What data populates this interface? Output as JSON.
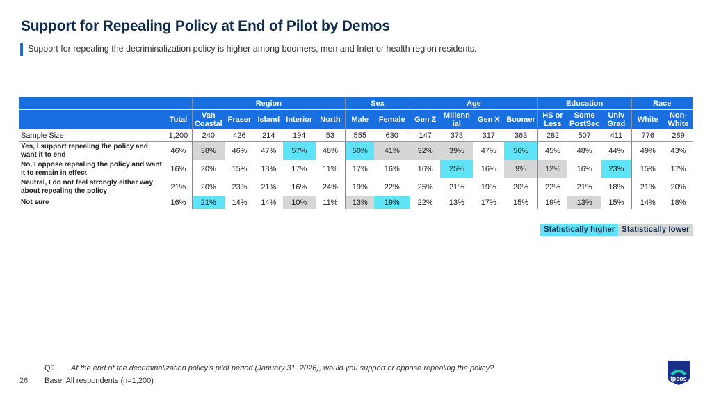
{
  "title": "Support for Repealing Policy at End of Pilot by Demos",
  "subtitle": "Support for repealing the decriminalization policy is higher among boomers, men and Interior health region residents.",
  "groups": {
    "region": "Region",
    "sex": "Sex",
    "age": "Age",
    "education": "Education",
    "race": "Race"
  },
  "columns": {
    "total": "Total",
    "van_coastal": "Van Coastal",
    "fraser": "Fraser",
    "island": "Island",
    "interior": "Interior",
    "north": "North",
    "male": "Male",
    "female": "Female",
    "genz": "Gen Z",
    "millennial": "Millenn ial",
    "genx": "Gen X",
    "boomer": "Boomer",
    "hs": "HS or Less",
    "postsec": "Some PostSec",
    "univ": "Univ Grad",
    "white": "White",
    "nonwhite": "Non-White"
  },
  "sample": {
    "label": "Sample Size",
    "values": [
      "1,200",
      "240",
      "426",
      "214",
      "194",
      "53",
      "555",
      "630",
      "147",
      "373",
      "317",
      "363",
      "282",
      "507",
      "411",
      "776",
      "289"
    ]
  },
  "rows": [
    {
      "label": "Yes, I support repealing the policy and want it to end",
      "values": [
        "46%",
        "38%",
        "46%",
        "47%",
        "57%",
        "48%",
        "50%",
        "41%",
        "32%",
        "39%",
        "47%",
        "56%",
        "45%",
        "48%",
        "44%",
        "49%",
        "43%"
      ],
      "sig": [
        "",
        "lo",
        "",
        "",
        "hi",
        "",
        "hi",
        "lo",
        "lo",
        "lo",
        "",
        "hi",
        "",
        "",
        "",
        "",
        ""
      ]
    },
    {
      "label": "No, I oppose repealing the policy and want it to remain in effect",
      "values": [
        "16%",
        "20%",
        "15%",
        "18%",
        "17%",
        "11%",
        "17%",
        "16%",
        "16%",
        "25%",
        "16%",
        "9%",
        "12%",
        "16%",
        "23%",
        "15%",
        "17%"
      ],
      "sig": [
        "",
        "",
        "",
        "",
        "",
        "",
        "",
        "",
        "",
        "hi",
        "",
        "lo",
        "lo",
        "",
        "hi",
        "",
        ""
      ]
    },
    {
      "label": "Neutral, I do not feel strongly either way about repealing the policy",
      "values": [
        "21%",
        "20%",
        "23%",
        "21%",
        "16%",
        "24%",
        "19%",
        "22%",
        "25%",
        "21%",
        "19%",
        "20%",
        "22%",
        "21%",
        "18%",
        "21%",
        "20%"
      ],
      "sig": [
        "",
        "",
        "",
        "",
        "",
        "",
        "",
        "",
        "",
        "",
        "",
        "",
        "",
        "",
        "",
        "",
        ""
      ]
    },
    {
      "label": "Not sure",
      "values": [
        "16%",
        "21%",
        "14%",
        "14%",
        "10%",
        "11%",
        "13%",
        "19%",
        "22%",
        "13%",
        "17%",
        "15%",
        "19%",
        "13%",
        "15%",
        "14%",
        "18%"
      ],
      "sig": [
        "",
        "hi",
        "",
        "",
        "lo",
        "",
        "lo",
        "hi",
        "",
        "",
        "",
        "",
        "",
        "lo",
        "",
        "",
        ""
      ]
    }
  ],
  "legend": {
    "higher": "Statistically higher",
    "lower": "Statistically lower"
  },
  "footer": {
    "q_num": "Q9.",
    "q_text": "At the end of the decriminalization policy’s pilot period (January 31, 2026), would you support or oppose repealing the policy?",
    "base": "Base: All respondents (n=1,200)",
    "page": "26"
  },
  "logo_text": "Ipsos",
  "colors": {
    "header": "#1a6fe0",
    "higher": "#5ee3f7",
    "lower": "#d6d6d6",
    "title": "#0f2a4a"
  },
  "chart_data": {
    "type": "table",
    "title": "Support for Repealing Policy at End of Pilot by Demos",
    "categories": [
      "Total",
      "Van Coastal",
      "Fraser",
      "Island",
      "Interior",
      "North",
      "Male",
      "Female",
      "Gen Z",
      "Millennial",
      "Gen X",
      "Boomer",
      "HS or Less",
      "Some PostSec",
      "Univ Grad",
      "White",
      "Non-White"
    ],
    "series": [
      {
        "name": "Yes, I support repealing the policy and want it to end",
        "values": [
          46,
          38,
          46,
          47,
          57,
          48,
          50,
          41,
          32,
          39,
          47,
          56,
          45,
          48,
          44,
          49,
          43
        ]
      },
      {
        "name": "No, I oppose repealing the policy and want it to remain in effect",
        "values": [
          16,
          20,
          15,
          18,
          17,
          11,
          17,
          16,
          16,
          25,
          16,
          9,
          12,
          16,
          23,
          15,
          17
        ]
      },
      {
        "name": "Neutral, I do not feel strongly either way about repealing the policy",
        "values": [
          21,
          20,
          23,
          21,
          16,
          24,
          19,
          22,
          25,
          21,
          19,
          20,
          22,
          21,
          18,
          21,
          20
        ]
      },
      {
        "name": "Not sure",
        "values": [
          16,
          21,
          14,
          14,
          10,
          11,
          13,
          19,
          22,
          13,
          17,
          15,
          19,
          13,
          15,
          14,
          18
        ]
      }
    ],
    "sample_sizes": [
      1200,
      240,
      426,
      214,
      194,
      53,
      555,
      630,
      147,
      373,
      317,
      363,
      282,
      507,
      411,
      776,
      289
    ]
  }
}
